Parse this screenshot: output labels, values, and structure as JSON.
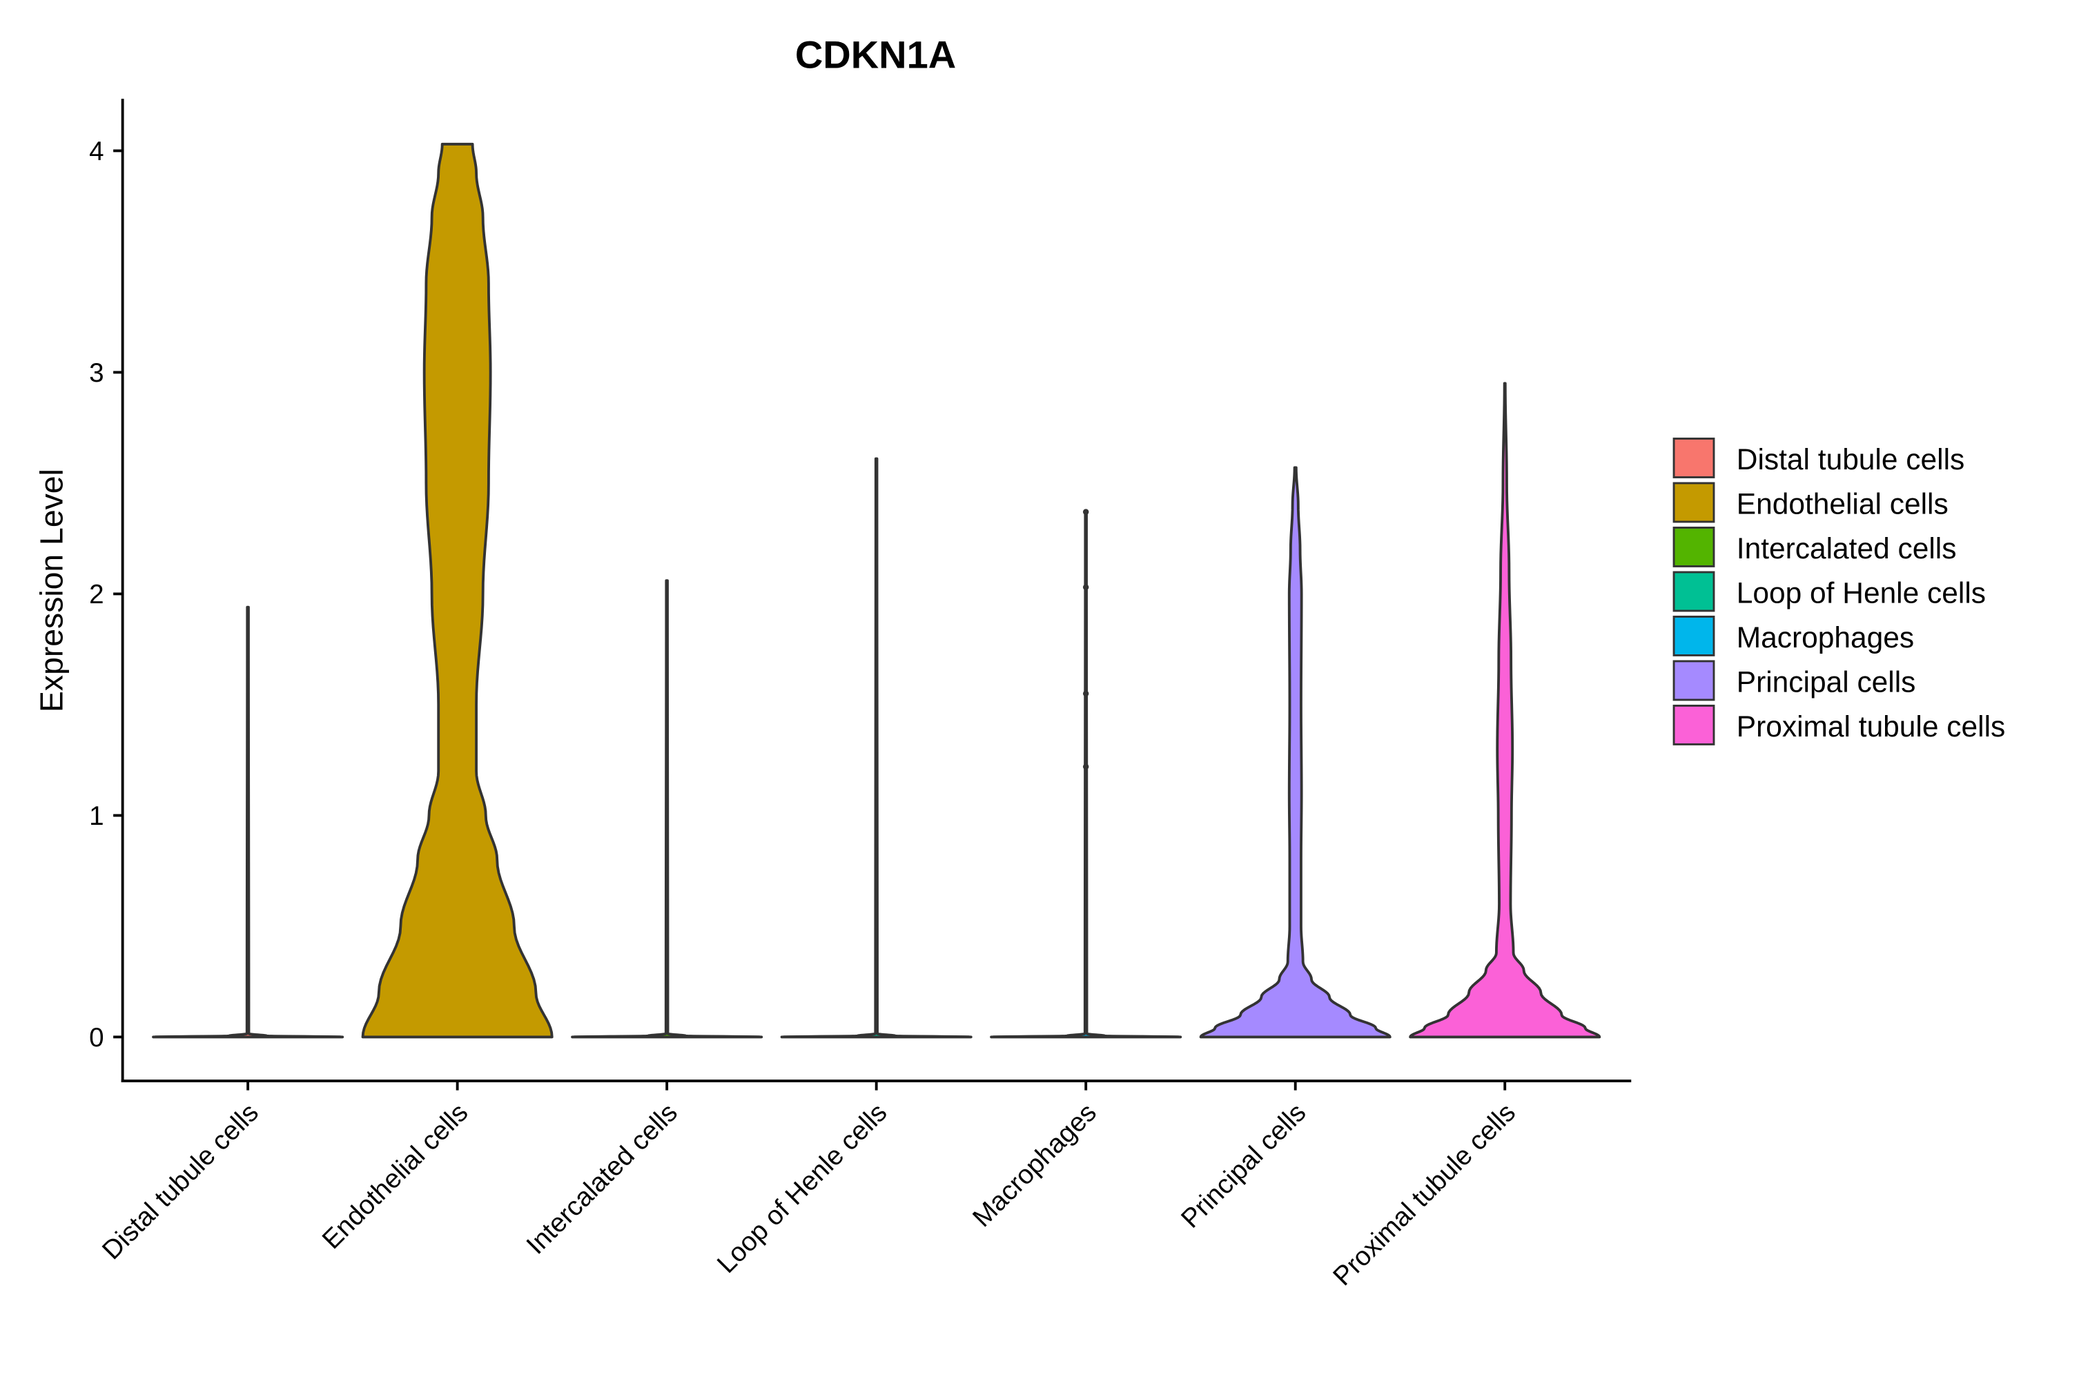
{
  "chart_data": {
    "type": "violin",
    "title": "CDKN1A",
    "xlabel": "",
    "ylabel": "Expression Level",
    "ylim": [
      -0.2,
      4.23
    ],
    "yticks": [
      0,
      1,
      2,
      3,
      4
    ],
    "ytick_labels": [
      "0",
      "1",
      "2",
      "3",
      "4"
    ],
    "grid": false,
    "legend_position": "right",
    "categories": [
      "Distal tubule cells",
      "Endothelial cells",
      "Intercalated cells",
      "Loop of Henle cells",
      "Macrophages",
      "Principal cells",
      "Proximal tubule cells"
    ],
    "colors": [
      "#F8766D",
      "#C49A00",
      "#53B400",
      "#00C094",
      "#00B6EB",
      "#A58AFF",
      "#FB61D7"
    ],
    "outline_color": "#333333",
    "series": [
      {
        "name": "Distal tubule cells",
        "max": 1.94,
        "density": [
          [
            0,
            1.0
          ],
          [
            0.005,
            0.2
          ],
          [
            0.015,
            0.01
          ],
          [
            1.94,
            0.006
          ]
        ]
      },
      {
        "name": "Endothelial cells",
        "max": 4.03,
        "density": [
          [
            0,
            1.0
          ],
          [
            0.2,
            0.83
          ],
          [
            0.5,
            0.6
          ],
          [
            0.8,
            0.42
          ],
          [
            1.0,
            0.3
          ],
          [
            1.2,
            0.2
          ],
          [
            1.5,
            0.2
          ],
          [
            2.0,
            0.27
          ],
          [
            2.5,
            0.33
          ],
          [
            3.0,
            0.35
          ],
          [
            3.4,
            0.33
          ],
          [
            3.7,
            0.27
          ],
          [
            3.9,
            0.2
          ],
          [
            4.03,
            0.16
          ]
        ]
      },
      {
        "name": "Intercalated cells",
        "max": 2.06,
        "density": [
          [
            0,
            1.0
          ],
          [
            0.005,
            0.2
          ],
          [
            0.015,
            0.01
          ],
          [
            2.06,
            0.006
          ]
        ]
      },
      {
        "name": "Loop of Henle cells",
        "max": 2.61,
        "density": [
          [
            0,
            1.0
          ],
          [
            0.005,
            0.2
          ],
          [
            0.015,
            0.01
          ],
          [
            2.61,
            0.006
          ]
        ]
      },
      {
        "name": "Macrophages",
        "max": 2.37,
        "density": [
          [
            0,
            1.0
          ],
          [
            0.005,
            0.2
          ],
          [
            0.015,
            0.01
          ],
          [
            2.37,
            0.006
          ]
        ],
        "points": [
          1.22,
          1.55,
          2.03,
          2.37
        ]
      },
      {
        "name": "Principal cells",
        "max": 2.57,
        "density": [
          [
            0,
            1.0
          ],
          [
            0.04,
            0.85
          ],
          [
            0.1,
            0.58
          ],
          [
            0.18,
            0.36
          ],
          [
            0.26,
            0.17
          ],
          [
            0.34,
            0.08
          ],
          [
            0.5,
            0.06
          ],
          [
            0.8,
            0.06
          ],
          [
            1.1,
            0.065
          ],
          [
            1.5,
            0.06
          ],
          [
            2.0,
            0.065
          ],
          [
            2.2,
            0.05
          ],
          [
            2.4,
            0.03
          ],
          [
            2.57,
            0.008
          ]
        ]
      },
      {
        "name": "Proximal tubule cells",
        "max": 2.95,
        "density": [
          [
            0,
            1.0
          ],
          [
            0.04,
            0.85
          ],
          [
            0.1,
            0.6
          ],
          [
            0.2,
            0.38
          ],
          [
            0.3,
            0.2
          ],
          [
            0.38,
            0.09
          ],
          [
            0.6,
            0.06
          ],
          [
            1.0,
            0.07
          ],
          [
            1.3,
            0.08
          ],
          [
            1.7,
            0.065
          ],
          [
            2.1,
            0.045
          ],
          [
            2.5,
            0.02
          ],
          [
            2.95,
            0.004
          ]
        ]
      }
    ]
  }
}
